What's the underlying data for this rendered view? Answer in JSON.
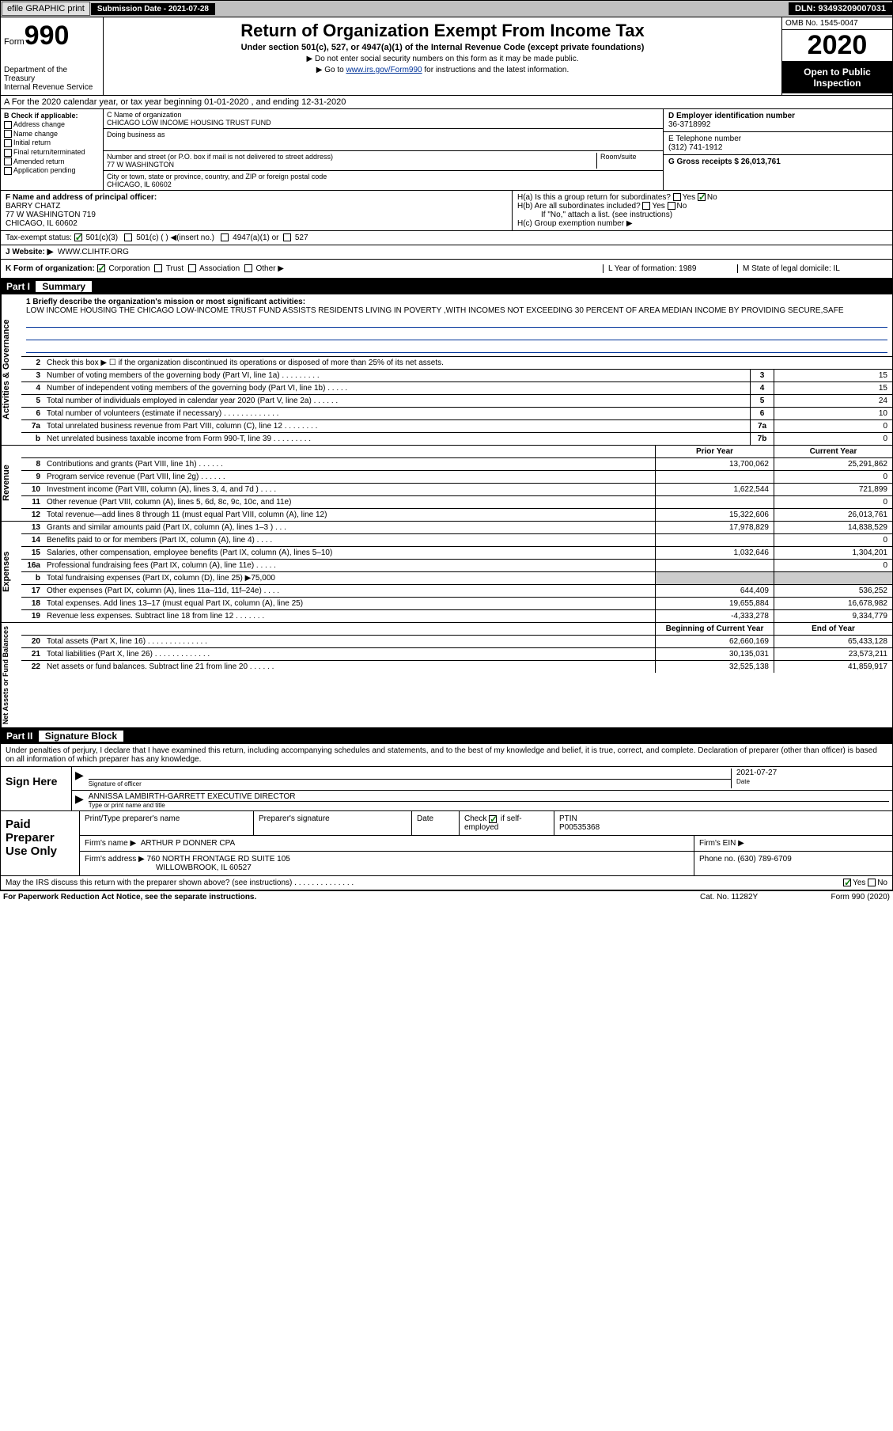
{
  "topbar": {
    "efile": "efile GRAPHIC print",
    "submission_label": "Submission Date - 2021-07-28",
    "dln": "DLN: 93493209007031"
  },
  "header": {
    "form_label": "Form",
    "form_number": "990",
    "dept": "Department of the Treasury",
    "irs": "Internal Revenue Service",
    "title": "Return of Organization Exempt From Income Tax",
    "subtitle": "Under section 501(c), 527, or 4947(a)(1) of the Internal Revenue Code (except private foundations)",
    "note1": "▶ Do not enter social security numbers on this form as it may be made public.",
    "note2_pre": "▶ Go to ",
    "note2_link": "www.irs.gov/Form990",
    "note2_post": " for instructions and the latest information.",
    "omb": "OMB No. 1545-0047",
    "year": "2020",
    "open": "Open to Public Inspection"
  },
  "taxyear": "A For the 2020 calendar year, or tax year beginning 01-01-2020    , and ending 12-31-2020",
  "secB": {
    "title": "B Check if applicable:",
    "items": [
      "Address change",
      "Name change",
      "Initial return",
      "Final return/terminated",
      "Amended return",
      "Application pending"
    ]
  },
  "secC": {
    "name_lbl": "C Name of organization",
    "name": "CHICAGO LOW INCOME HOUSING TRUST FUND",
    "dba_lbl": "Doing business as",
    "addr_lbl": "Number and street (or P.O. box if mail is not delivered to street address)",
    "room_lbl": "Room/suite",
    "addr": "77 W WASHINGTON",
    "city_lbl": "City or town, state or province, country, and ZIP or foreign postal code",
    "city": "CHICAGO, IL  60602"
  },
  "secD": {
    "ein_lbl": "D Employer identification number",
    "ein": "36-3718992",
    "phone_lbl": "E Telephone number",
    "phone": "(312) 741-1912",
    "gross_lbl": "G Gross receipts $ 26,013,761"
  },
  "secF": {
    "lbl": "F  Name and address of principal officer:",
    "name": "BARRY CHATZ",
    "addr1": "77 W WASHINGTON 719",
    "addr2": "CHICAGO, IL  60602"
  },
  "secH": {
    "ha": "H(a)  Is this a group return for subordinates?",
    "hb": "H(b)  Are all subordinates included?",
    "hb_note": "If \"No,\" attach a list. (see instructions)",
    "hc": "H(c)  Group exemption number ▶",
    "yes": "Yes",
    "no": "No"
  },
  "taxexempt": {
    "lbl": "Tax-exempt status:",
    "i1": "501(c)(3)",
    "i2": "501(c) (  ) ◀(insert no.)",
    "i3": "4947(a)(1) or",
    "i4": "527"
  },
  "website": {
    "lbl": "J  Website: ▶",
    "val": "WWW.CLIHTF.ORG"
  },
  "korg": {
    "lbl": "K Form of organization:",
    "opts": [
      "Corporation",
      "Trust",
      "Association",
      "Other ▶"
    ],
    "L": "L Year of formation: 1989",
    "M": "M State of legal domicile: IL"
  },
  "part1": {
    "label": "Part I",
    "title": "Summary"
  },
  "mission": {
    "lbl": "1  Briefly describe the organization's mission or most significant activities:",
    "text": "LOW INCOME HOUSING THE CHICAGO LOW-INCOME TRUST FUND ASSISTS RESIDENTS LIVING IN POVERTY ,WITH INCOMES NOT EXCEEDING 30 PERCENT OF AREA MEDIAN INCOME BY PROVIDING SECURE,SAFE"
  },
  "vtabs": {
    "gov": "Activities & Governance",
    "rev": "Revenue",
    "exp": "Expenses",
    "net": "Net Assets or Fund Balances"
  },
  "line2": "Check this box ▶ ☐  if the organization discontinued its operations or disposed of more than 25% of its net assets.",
  "gov_lines": [
    {
      "n": "3",
      "t": "Number of voting members of the governing body (Part VI, line 1a)  .  .  .  .  .  .  .  .  .",
      "b": "3",
      "v": "15"
    },
    {
      "n": "4",
      "t": "Number of independent voting members of the governing body (Part VI, line 1b)  .  .  .  .  .",
      "b": "4",
      "v": "15"
    },
    {
      "n": "5",
      "t": "Total number of individuals employed in calendar year 2020 (Part V, line 2a)  .  .  .  .  .  .",
      "b": "5",
      "v": "24"
    },
    {
      "n": "6",
      "t": "Total number of volunteers (estimate if necessary)   .  .  .  .  .  .  .  .  .  .  .  .  .",
      "b": "6",
      "v": "10"
    },
    {
      "n": "7a",
      "t": "Total unrelated business revenue from Part VIII, column (C), line 12  .  .  .  .  .  .  .  .",
      "b": "7a",
      "v": "0"
    },
    {
      "n": "b",
      "t": "Net unrelated business taxable income from Form 990-T, line 39  .  .  .  .  .  .  .  .  .",
      "b": "7b",
      "v": "0"
    }
  ],
  "colhdr": {
    "py": "Prior Year",
    "cy": "Current Year"
  },
  "rev_lines": [
    {
      "n": "8",
      "t": "Contributions and grants (Part VIII, line 1h)  .  .  .  .  .  .",
      "py": "13,700,062",
      "cy": "25,291,862"
    },
    {
      "n": "9",
      "t": "Program service revenue (Part VIII, line 2g)  .  .  .  .  .  .",
      "py": "",
      "cy": "0"
    },
    {
      "n": "10",
      "t": "Investment income (Part VIII, column (A), lines 3, 4, and 7d )   .  .  .  .",
      "py": "1,622,544",
      "cy": "721,899"
    },
    {
      "n": "11",
      "t": "Other revenue (Part VIII, column (A), lines 5, 6d, 8c, 9c, 10c, and 11e)",
      "py": "",
      "cy": "0"
    },
    {
      "n": "12",
      "t": "Total revenue—add lines 8 through 11 (must equal Part VIII, column (A), line 12)",
      "py": "15,322,606",
      "cy": "26,013,761"
    }
  ],
  "exp_lines": [
    {
      "n": "13",
      "t": "Grants and similar amounts paid (Part IX, column (A), lines 1–3 )  .  .  .",
      "py": "17,978,829",
      "cy": "14,838,529"
    },
    {
      "n": "14",
      "t": "Benefits paid to or for members (Part IX, column (A), line 4)  .  .  .  .",
      "py": "",
      "cy": "0"
    },
    {
      "n": "15",
      "t": "Salaries, other compensation, employee benefits (Part IX, column (A), lines 5–10)",
      "py": "1,032,646",
      "cy": "1,304,201"
    },
    {
      "n": "16a",
      "t": "Professional fundraising fees (Part IX, column (A), line 11e)  .  .  .  .  .",
      "py": "",
      "cy": "0"
    },
    {
      "n": "b",
      "t": "Total fundraising expenses (Part IX, column (D), line 25) ▶75,000",
      "py": "shade",
      "cy": "shade"
    },
    {
      "n": "17",
      "t": "Other expenses (Part IX, column (A), lines 11a–11d, 11f–24e)  .  .  .  .",
      "py": "644,409",
      "cy": "536,252"
    },
    {
      "n": "18",
      "t": "Total expenses. Add lines 13–17 (must equal Part IX, column (A), line 25)",
      "py": "19,655,884",
      "cy": "16,678,982"
    },
    {
      "n": "19",
      "t": "Revenue less expenses. Subtract line 18 from line 12  .  .  .  .  .  .  .",
      "py": "-4,333,278",
      "cy": "9,334,779"
    }
  ],
  "net_hdr": {
    "b": "Beginning of Current Year",
    "e": "End of Year"
  },
  "net_lines": [
    {
      "n": "20",
      "t": "Total assets (Part X, line 16)  .  .  .  .  .  .  .  .  .  .  .  .  .  .",
      "py": "62,660,169",
      "cy": "65,433,128"
    },
    {
      "n": "21",
      "t": "Total liabilities (Part X, line 26)  .  .  .  .  .  .  .  .  .  .  .  .  .",
      "py": "30,135,031",
      "cy": "23,573,211"
    },
    {
      "n": "22",
      "t": "Net assets or fund balances. Subtract line 21 from line 20  .  .  .  .  .  .",
      "py": "32,525,138",
      "cy": "41,859,917"
    }
  ],
  "part2": {
    "label": "Part II",
    "title": "Signature Block"
  },
  "sig": {
    "decl": "Under penalties of perjury, I declare that I have examined this return, including accompanying schedules and statements, and to the best of my knowledge and belief, it is true, correct, and complete. Declaration of preparer (other than officer) is based on all information of which preparer has any knowledge.",
    "sign_here": "Sign Here",
    "sig_lbl": "Signature of officer",
    "date_lbl": "Date",
    "date": "2021-07-27",
    "officer": "ANNISSA LAMBIRTH-GARRETT EXECUTIVE DIRECTOR",
    "officer_lbl": "Type or print name and title"
  },
  "prep": {
    "title": "Paid Preparer Use Only",
    "print_lbl": "Print/Type preparer's name",
    "sig_lbl": "Preparer's signature",
    "date_lbl": "Date",
    "check_lbl": "Check",
    "self_lbl": "if self-employed",
    "ptin_lbl": "PTIN",
    "ptin": "P00535368",
    "firm_lbl": "Firm's name    ▶",
    "firm": "ARTHUR P DONNER CPA",
    "ein_lbl": "Firm's EIN ▶",
    "addr_lbl": "Firm's address ▶",
    "addr1": "760 NORTH FRONTAGE RD SUITE 105",
    "addr2": "WILLOWBROOK, IL  60527",
    "phone_lbl": "Phone no. (630) 789-6709",
    "discuss": "May the IRS discuss this return with the preparer shown above? (see instructions)   .  .  .  .  .  .  .  .  .  .  .  .  .  ."
  },
  "foot": {
    "l": "For Paperwork Reduction Act Notice, see the separate instructions.",
    "m": "Cat. No. 11282Y",
    "r": "Form 990 (2020)"
  }
}
